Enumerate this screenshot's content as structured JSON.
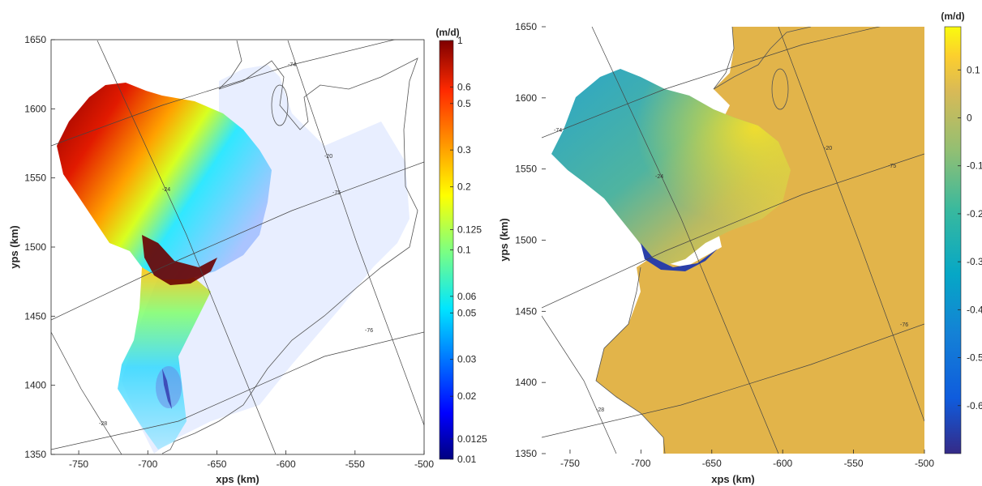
{
  "chart_data": [
    {
      "type": "heatmap",
      "subplot": "left",
      "xlabel": "xps (km)",
      "ylabel": "yps (km)",
      "xlim": [
        -770,
        -500
      ],
      "ylim": [
        1350,
        1650
      ],
      "xticks": [
        -750,
        -700,
        -650,
        -600,
        -550,
        -500
      ],
      "yticks": [
        1350,
        1400,
        1450,
        1500,
        1550,
        1600,
        1650
      ],
      "colorbar": {
        "label": "(m/d)",
        "scale": "log",
        "range": [
          0.01,
          1
        ],
        "colormap": "jet",
        "ticks": [
          0.01,
          0.0125,
          0.02,
          0.03,
          0.05,
          0.06,
          0.1,
          0.125,
          0.2,
          0.3,
          0.5,
          0.6,
          1
        ],
        "tick_labels": [
          "0.01",
          "0.0125",
          "0.02",
          "0.03",
          "0.05",
          "0.06",
          "0.1",
          "0.125",
          "0.2",
          "0.3",
          "0.5",
          "0.6",
          "1"
        ]
      },
      "graticule": {
        "lat_labels": [
          "-74",
          "-75",
          "-76"
        ],
        "lon_labels": [
          "-28",
          "-24",
          "-20"
        ]
      }
    },
    {
      "type": "heatmap",
      "subplot": "right",
      "xlabel": "xps (km)",
      "ylabel": "yps (km)",
      "xlim": [
        -770,
        -500
      ],
      "ylim": [
        1350,
        1650
      ],
      "xticks": [
        -750,
        -700,
        -650,
        -600,
        -550,
        -500
      ],
      "yticks": [
        1350,
        1400,
        1450,
        1500,
        1550,
        1600,
        1650
      ],
      "colorbar": {
        "label": "(m/d)",
        "scale": "linear",
        "range": [
          -0.7,
          0.19
        ],
        "colormap": "parula",
        "ticks": [
          0.1,
          0,
          -0.1,
          -0.2,
          -0.3,
          -0.4,
          -0.5,
          -0.6
        ],
        "tick_labels": [
          "0.1",
          "0",
          "-0.1",
          "-0.2",
          "-0.3",
          "-0.4",
          "-0.5",
          "-0.6"
        ]
      },
      "graticule": {
        "lat_labels": [
          "-74",
          "-75",
          "-76"
        ],
        "lon_labels": [
          "-28",
          "-24",
          "-20"
        ]
      }
    }
  ]
}
